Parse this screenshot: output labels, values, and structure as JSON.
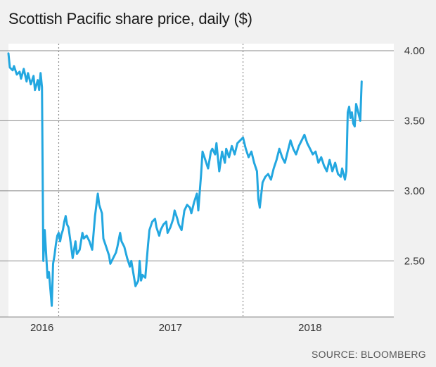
{
  "chart_data": {
    "type": "line",
    "title": "Scottish Pacific share price, daily ($)",
    "source": "SOURCE: BLOOMBERG",
    "ylim": [
      2.1,
      4.05
    ],
    "y_ticks": [
      {
        "value": 4.0,
        "label": "4.00"
      },
      {
        "value": 3.5,
        "label": "3.50"
      },
      {
        "value": 3.0,
        "label": "3.00"
      },
      {
        "value": 2.5,
        "label": "2.50"
      }
    ],
    "x_ticks": [
      {
        "value": 2016.08,
        "label": "2016"
      },
      {
        "value": 2017.0,
        "label": "2017"
      },
      {
        "value": 2018.0,
        "label": "2018"
      }
    ],
    "xlim": [
      2015.84,
      2018.6
    ],
    "reference_lines": [
      2016.2,
      2017.52
    ],
    "grid": true,
    "colors": {
      "line": "#23a7e0",
      "grid": "#888888",
      "plot_bg": "#ffffff",
      "page_bg": "#f1f1f1"
    },
    "series": [
      {
        "points": [
          [
            2015.84,
            3.98
          ],
          [
            2015.85,
            3.88
          ],
          [
            2015.87,
            3.86
          ],
          [
            2015.88,
            3.89
          ],
          [
            2015.9,
            3.83
          ],
          [
            2015.92,
            3.85
          ],
          [
            2015.93,
            3.8
          ],
          [
            2015.95,
            3.87
          ],
          [
            2015.97,
            3.78
          ],
          [
            2015.98,
            3.84
          ],
          [
            2016.0,
            3.76
          ],
          [
            2016.02,
            3.82
          ],
          [
            2016.03,
            3.72
          ],
          [
            2016.05,
            3.79
          ],
          [
            2016.06,
            3.72
          ],
          [
            2016.07,
            3.84
          ],
          [
            2016.08,
            3.74
          ],
          [
            2016.09,
            2.5
          ],
          [
            2016.1,
            2.72
          ],
          [
            2016.11,
            2.55
          ],
          [
            2016.12,
            2.38
          ],
          [
            2016.13,
            2.42
          ],
          [
            2016.14,
            2.3
          ],
          [
            2016.15,
            2.18
          ],
          [
            2016.16,
            2.48
          ],
          [
            2016.17,
            2.54
          ],
          [
            2016.18,
            2.62
          ],
          [
            2016.19,
            2.68
          ],
          [
            2016.2,
            2.7
          ],
          [
            2016.21,
            2.64
          ],
          [
            2016.22,
            2.69
          ],
          [
            2016.23,
            2.72
          ],
          [
            2016.24,
            2.78
          ],
          [
            2016.25,
            2.82
          ],
          [
            2016.26,
            2.76
          ],
          [
            2016.27,
            2.74
          ],
          [
            2016.29,
            2.6
          ],
          [
            2016.3,
            2.52
          ],
          [
            2016.32,
            2.64
          ],
          [
            2016.33,
            2.55
          ],
          [
            2016.35,
            2.58
          ],
          [
            2016.37,
            2.7
          ],
          [
            2016.38,
            2.66
          ],
          [
            2016.4,
            2.68
          ],
          [
            2016.42,
            2.64
          ],
          [
            2016.44,
            2.58
          ],
          [
            2016.46,
            2.82
          ],
          [
            2016.48,
            2.98
          ],
          [
            2016.49,
            2.9
          ],
          [
            2016.51,
            2.84
          ],
          [
            2016.52,
            2.66
          ],
          [
            2016.54,
            2.6
          ],
          [
            2016.56,
            2.54
          ],
          [
            2016.57,
            2.48
          ],
          [
            2016.59,
            2.52
          ],
          [
            2016.61,
            2.56
          ],
          [
            2016.62,
            2.6
          ],
          [
            2016.64,
            2.7
          ],
          [
            2016.65,
            2.64
          ],
          [
            2016.67,
            2.6
          ],
          [
            2016.69,
            2.52
          ],
          [
            2016.71,
            2.46
          ],
          [
            2016.72,
            2.5
          ],
          [
            2016.74,
            2.38
          ],
          [
            2016.75,
            2.32
          ],
          [
            2016.77,
            2.36
          ],
          [
            2016.78,
            2.5
          ],
          [
            2016.79,
            2.36
          ],
          [
            2016.8,
            2.4
          ],
          [
            2016.82,
            2.38
          ],
          [
            2016.84,
            2.62
          ],
          [
            2016.85,
            2.72
          ],
          [
            2016.87,
            2.78
          ],
          [
            2016.89,
            2.8
          ],
          [
            2016.9,
            2.74
          ],
          [
            2016.92,
            2.68
          ],
          [
            2016.93,
            2.72
          ],
          [
            2016.95,
            2.76
          ],
          [
            2016.97,
            2.78
          ],
          [
            2016.98,
            2.7
          ],
          [
            2017.0,
            2.74
          ],
          [
            2017.02,
            2.8
          ],
          [
            2017.03,
            2.86
          ],
          [
            2017.05,
            2.8
          ],
          [
            2017.06,
            2.76
          ],
          [
            2017.08,
            2.72
          ],
          [
            2017.1,
            2.86
          ],
          [
            2017.12,
            2.9
          ],
          [
            2017.14,
            2.88
          ],
          [
            2017.15,
            2.84
          ],
          [
            2017.17,
            2.92
          ],
          [
            2017.19,
            2.98
          ],
          [
            2017.2,
            2.86
          ],
          [
            2017.22,
            3.12
          ],
          [
            2017.23,
            3.28
          ],
          [
            2017.25,
            3.22
          ],
          [
            2017.27,
            3.16
          ],
          [
            2017.29,
            3.28
          ],
          [
            2017.3,
            3.3
          ],
          [
            2017.32,
            3.26
          ],
          [
            2017.33,
            3.34
          ],
          [
            2017.35,
            3.14
          ],
          [
            2017.37,
            3.28
          ],
          [
            2017.39,
            3.2
          ],
          [
            2017.4,
            3.3
          ],
          [
            2017.42,
            3.24
          ],
          [
            2017.44,
            3.32
          ],
          [
            2017.46,
            3.26
          ],
          [
            2017.48,
            3.34
          ],
          [
            2017.5,
            3.36
          ],
          [
            2017.52,
            3.38
          ],
          [
            2017.54,
            3.3
          ],
          [
            2017.56,
            3.24
          ],
          [
            2017.58,
            3.28
          ],
          [
            2017.6,
            3.2
          ],
          [
            2017.62,
            3.14
          ],
          [
            2017.63,
            2.94
          ],
          [
            2017.64,
            2.88
          ],
          [
            2017.66,
            3.06
          ],
          [
            2017.68,
            3.1
          ],
          [
            2017.7,
            3.12
          ],
          [
            2017.72,
            3.08
          ],
          [
            2017.74,
            3.16
          ],
          [
            2017.76,
            3.22
          ],
          [
            2017.78,
            3.3
          ],
          [
            2017.8,
            3.24
          ],
          [
            2017.82,
            3.2
          ],
          [
            2017.84,
            3.28
          ],
          [
            2017.86,
            3.36
          ],
          [
            2017.88,
            3.3
          ],
          [
            2017.9,
            3.26
          ],
          [
            2017.92,
            3.32
          ],
          [
            2017.94,
            3.36
          ],
          [
            2017.96,
            3.4
          ],
          [
            2017.98,
            3.34
          ],
          [
            2018.0,
            3.3
          ],
          [
            2018.02,
            3.26
          ],
          [
            2018.04,
            3.28
          ],
          [
            2018.06,
            3.2
          ],
          [
            2018.08,
            3.24
          ],
          [
            2018.1,
            3.18
          ],
          [
            2018.12,
            3.14
          ],
          [
            2018.14,
            3.22
          ],
          [
            2018.16,
            3.14
          ],
          [
            2018.18,
            3.2
          ],
          [
            2018.2,
            3.12
          ],
          [
            2018.22,
            3.1
          ],
          [
            2018.23,
            3.16
          ],
          [
            2018.25,
            3.08
          ],
          [
            2018.26,
            3.14
          ],
          [
            2018.27,
            3.56
          ],
          [
            2018.28,
            3.6
          ],
          [
            2018.29,
            3.52
          ],
          [
            2018.3,
            3.56
          ],
          [
            2018.31,
            3.48
          ],
          [
            2018.32,
            3.46
          ],
          [
            2018.33,
            3.62
          ],
          [
            2018.34,
            3.58
          ],
          [
            2018.35,
            3.54
          ],
          [
            2018.36,
            3.5
          ],
          [
            2018.37,
            3.78
          ]
        ]
      }
    ]
  }
}
